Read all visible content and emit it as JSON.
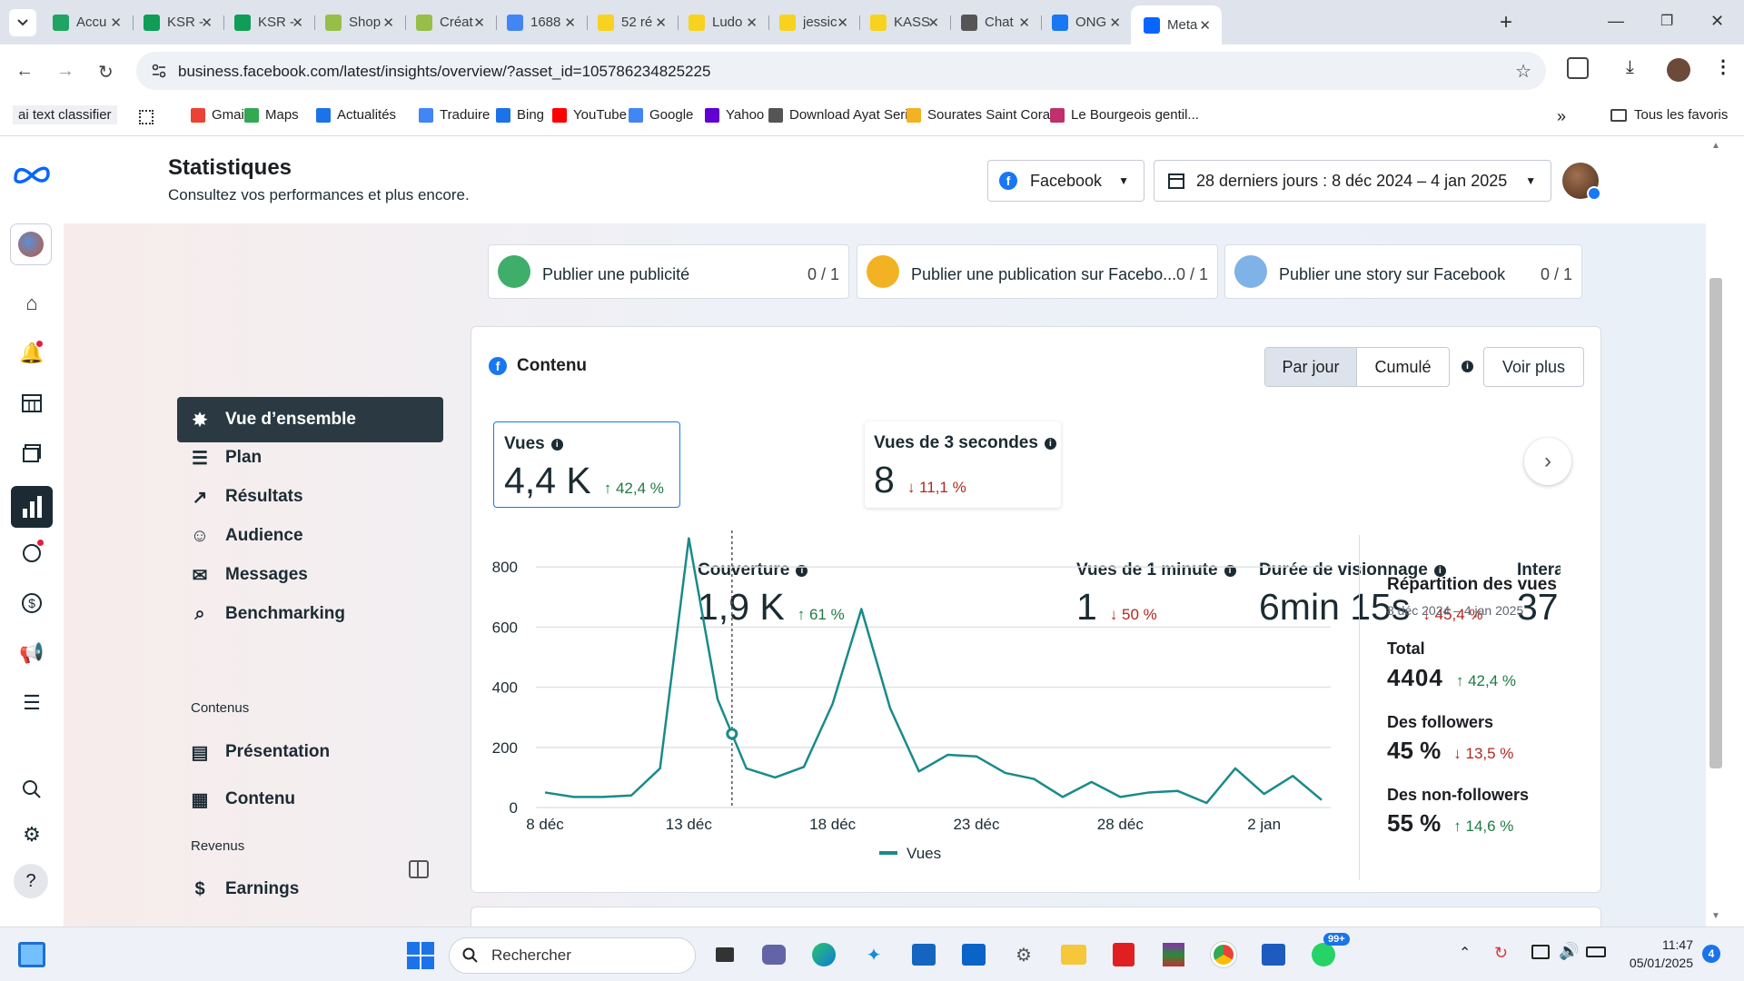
{
  "browser": {
    "tabs": [
      {
        "label": "Accu",
        "icon": "drive-icon",
        "color": "#1fa463"
      },
      {
        "label": "KSR -",
        "icon": "sheets-icon",
        "color": "#0f9d58"
      },
      {
        "label": "KSR -",
        "icon": "sheets-icon",
        "color": "#0f9d58"
      },
      {
        "label": "Shop",
        "icon": "shopify-icon",
        "color": "#95bf47"
      },
      {
        "label": "Créat",
        "icon": "shopify-icon",
        "color": "#95bf47"
      },
      {
        "label": "1688",
        "icon": "google-icon",
        "color": "#4285f4"
      },
      {
        "label": "52 ré",
        "icon": "emoji-icon",
        "color": "#f7d21e"
      },
      {
        "label": "Ludo",
        "icon": "emoji-icon",
        "color": "#f7d21e"
      },
      {
        "label": "jessic",
        "icon": "emoji-icon",
        "color": "#f7d21e"
      },
      {
        "label": "KASS",
        "icon": "emoji-icon",
        "color": "#f7d21e"
      },
      {
        "label": "Chat",
        "icon": "openai-icon",
        "color": "#555555"
      },
      {
        "label": "ONG",
        "icon": "facebook-icon",
        "color": "#1877f2"
      },
      {
        "label": "Meta",
        "icon": "meta-icon",
        "color": "#0866ff"
      }
    ],
    "url": "business.facebook.com/latest/insights/overview/?asset_id=105786234825225",
    "bookmarks": [
      {
        "label": "ai text classifier"
      },
      {
        "label": "Gmail"
      },
      {
        "label": "Maps"
      },
      {
        "label": "Actualités"
      },
      {
        "label": "Traduire"
      },
      {
        "label": "Bing"
      },
      {
        "label": "YouTube"
      },
      {
        "label": "Google"
      },
      {
        "label": "Yahoo"
      },
      {
        "label": "Download Ayat Seri..."
      },
      {
        "label": "Sourates Saint Cora..."
      },
      {
        "label": "Le Bourgeois gentil..."
      }
    ],
    "all_bookmarks": "Tous les favoris"
  },
  "header": {
    "title": "Statistiques",
    "subtitle": "Consultez vos performances et plus encore.",
    "platform": "Facebook",
    "date_range": "28 derniers jours : 8 déc 2024 – 4 jan 2025"
  },
  "nav": {
    "items": [
      {
        "label": "Vue d’ensemble",
        "icon": "overview-icon"
      },
      {
        "label": "Plan",
        "icon": "plan-icon"
      },
      {
        "label": "Résultats",
        "icon": "results-icon"
      },
      {
        "label": "Audience",
        "icon": "audience-icon"
      },
      {
        "label": "Messages",
        "icon": "messages-icon"
      },
      {
        "label": "Benchmarking",
        "icon": "benchmark-icon"
      }
    ],
    "section_content": "Contenus",
    "content_items": [
      {
        "label": "Présentation",
        "icon": "presentation-icon"
      },
      {
        "label": "Contenu",
        "icon": "table-icon"
      }
    ],
    "section_revenue": "Revenus",
    "revenue_items": [
      {
        "label": "Earnings",
        "icon": "dollar-icon"
      }
    ]
  },
  "goals": [
    {
      "label": "Publier une publicité",
      "count": "0 / 1"
    },
    {
      "label": "Publier une publication sur Facebo...",
      "count": "0 / 1"
    },
    {
      "label": "Publier une story sur Facebook",
      "count": "0 / 1"
    }
  ],
  "content_section": {
    "title": "Contenu",
    "toggle_daily": "Par jour",
    "toggle_cumulative": "Cumulé",
    "see_more": "Voir plus"
  },
  "metrics": [
    {
      "label": "Vues",
      "value": "4,4 K",
      "change": "42,4 %",
      "dir": "up"
    },
    {
      "label": "Couverture",
      "value": "1,9 K",
      "change": "61 %",
      "dir": "up"
    },
    {
      "label": "Vues de 3 secondes",
      "value": "8",
      "change": "11,1 %",
      "dir": "down"
    },
    {
      "label": "Vues de 1 minute",
      "value": "1",
      "change": "50 %",
      "dir": "down"
    },
    {
      "label": "Durée de visionnage",
      "value": "6min 15s",
      "change": "45,4 %",
      "dir": "down"
    },
    {
      "label": "Interact",
      "value": "37",
      "change": "",
      "dir": ""
    }
  ],
  "chart_data": {
    "type": "line",
    "x": [
      "8 déc",
      "9 déc",
      "10 déc",
      "11 déc",
      "12 déc",
      "13 déc",
      "14 déc",
      "15 déc",
      "16 déc",
      "17 déc",
      "18 déc",
      "19 déc",
      "20 déc",
      "21 déc",
      "22 déc",
      "23 déc",
      "24 déc",
      "25 déc",
      "26 déc",
      "27 déc",
      "28 déc",
      "29 déc",
      "30 déc",
      "31 déc",
      "1 jan",
      "2 jan",
      "3 jan",
      "4 jan"
    ],
    "tick_labels": [
      "8 déc",
      "13 déc",
      "18 déc",
      "23 déc",
      "28 déc",
      "2 jan"
    ],
    "series": [
      {
        "name": "Vues",
        "color": "#1a8a8a",
        "values": [
          50,
          35,
          35,
          40,
          130,
          895,
          360,
          130,
          100,
          135,
          345,
          660,
          330,
          120,
          175,
          170,
          115,
          95,
          35,
          85,
          35,
          50,
          55,
          15,
          130,
          45,
          105,
          25
        ]
      }
    ],
    "ylim": [
      0,
      900
    ],
    "yticks": [
      0,
      200,
      400,
      600,
      800
    ],
    "highlight_index": 7,
    "grid": true,
    "legend": "bottom"
  },
  "breakdown": {
    "title": "Répartition des vues",
    "range": "8 déc 2024 – 4 jan 2025",
    "total_label": "Total",
    "total_value": "4404",
    "total_change": "42,4 %",
    "followers_label": "Des followers",
    "followers_value": "45 %",
    "followers_change": "13,5 %",
    "nonfollowers_label": "Des non-followers",
    "nonfollowers_value": "55 %",
    "nonfollowers_change": "14,6 %"
  },
  "taskbar": {
    "search_placeholder": "Rechercher",
    "time": "11:47",
    "date": "05/01/2025",
    "whatsapp_badge": "99+",
    "notif_count": "4"
  }
}
